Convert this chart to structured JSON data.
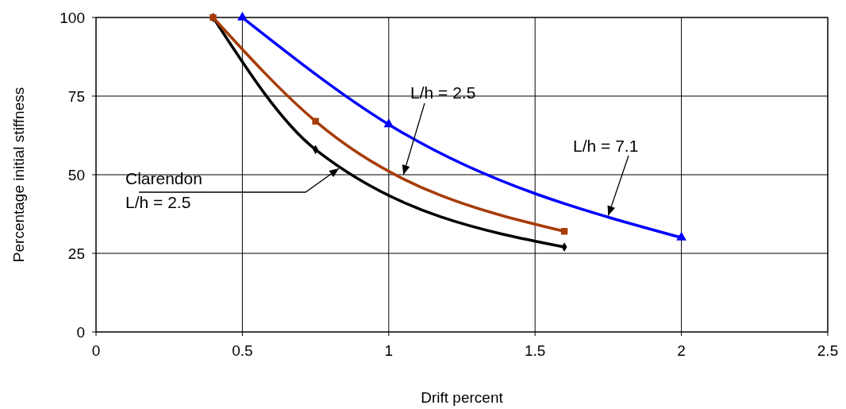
{
  "chart_data": {
    "type": "line",
    "xlabel": "Drift percent",
    "ylabel": "Percentage initial stiffness",
    "xlim": [
      0,
      2.5
    ],
    "xticks": [
      0,
      0.5,
      1,
      1.5,
      2,
      2.5
    ],
    "ylim": [
      0,
      100
    ],
    "yticks": [
      0,
      25,
      50,
      75,
      100
    ],
    "grid": true,
    "line_style": "solid",
    "series": [
      {
        "color": "#000000",
        "marker": "diamond",
        "x": [
          0.4,
          0.75,
          1.6
        ],
        "values": [
          100,
          58,
          27
        ]
      },
      {
        "color": "#a63c06",
        "marker": "square",
        "x": [
          0.4,
          0.75,
          1.6
        ],
        "values": [
          100,
          67,
          32
        ]
      },
      {
        "color": "#0000ff",
        "marker": "triangle",
        "x": [
          0.5,
          1,
          2
        ],
        "values": [
          100,
          66,
          30
        ]
      }
    ],
    "annotations": [
      {
        "text": "L/h = 2.5",
        "x": 1.05,
        "y": 50
      },
      {
        "text": "L/h = 7.1",
        "x": 1.75,
        "y": 37
      },
      {
        "text": "Clarendon\nL/h = 2.5",
        "x": 0.83,
        "y": 52
      }
    ]
  }
}
